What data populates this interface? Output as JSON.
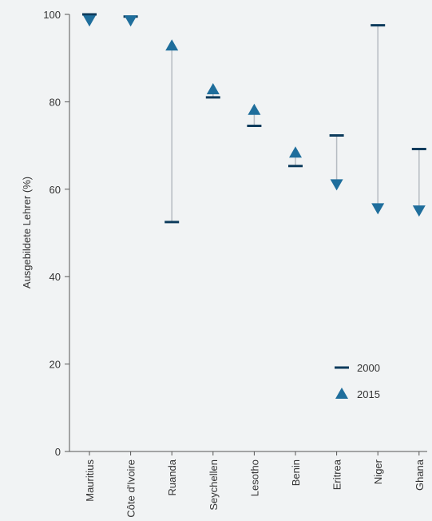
{
  "chart_data": {
    "type": "scatter",
    "title": "",
    "xlabel": "",
    "ylabel": "Ausgebildete Lehrer (%)",
    "ylim": [
      0,
      100
    ],
    "yticks": [
      0,
      20,
      40,
      60,
      80,
      100
    ],
    "categories": [
      "Mauritius",
      "Côte d'Ivoire",
      "Ruanda",
      "Seychellen",
      "Lesotho",
      "Benin",
      "Eritrea",
      "Niger",
      "Ghana"
    ],
    "series": [
      {
        "name": "2000",
        "marker": "dash",
        "values": [
          100,
          99.5,
          52.5,
          81,
          74.5,
          65.3,
          72.3,
          97.5,
          69.2
        ]
      },
      {
        "name": "2015",
        "marker": "triangle",
        "values": [
          98.5,
          98.5,
          93,
          83,
          78.3,
          68.5,
          61,
          55.5,
          55
        ]
      }
    ],
    "legend_position": "bottom-right",
    "grid": false,
    "colors": {
      "background": "#f1f3f4",
      "dash": "#0d3b5c",
      "triangle": "#1f6e9c",
      "connector": "#b6bcc2",
      "axis": "#555555"
    }
  }
}
